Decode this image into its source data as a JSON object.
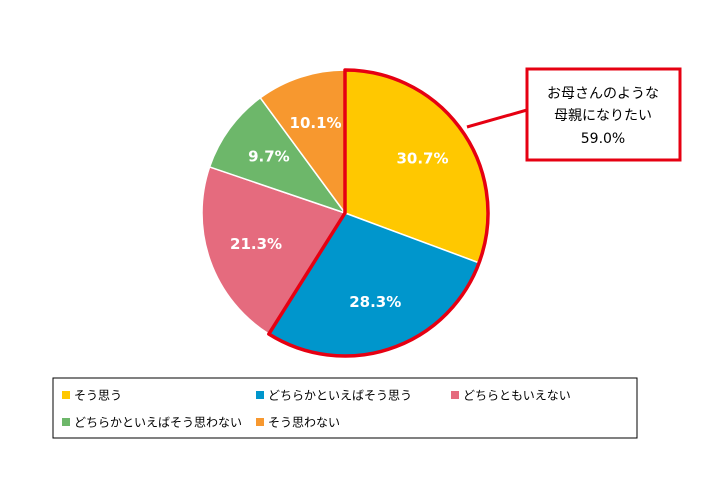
{
  "chart_data": {
    "type": "pie",
    "categories": [
      "そう思う",
      "どちらかといえばそう思う",
      "どちらともいえない",
      "どちらかといえばそう思わない",
      "そう思わない"
    ],
    "values": [
      30.7,
      28.3,
      21.3,
      9.7,
      10.1
    ],
    "labels": [
      "30.7%",
      "28.3%",
      "21.3%",
      "9.7%",
      "10.1%"
    ],
    "colors": [
      "#FFC800",
      "#0096CC",
      "#E56B7E",
      "#6DB76A",
      "#F7982F"
    ],
    "highlight": {
      "slices": [
        0,
        1
      ],
      "color": "#E60012"
    },
    "callout": {
      "lines": [
        "お母さんのような",
        "母親になりたい",
        "59.0%"
      ]
    },
    "legend": {
      "placement": "bottom",
      "items": [
        "そう思う",
        "どちらかといえばそう思う",
        "どちらともいえない",
        "どちらかといえばそう思わない",
        "そう思わない"
      ]
    }
  }
}
